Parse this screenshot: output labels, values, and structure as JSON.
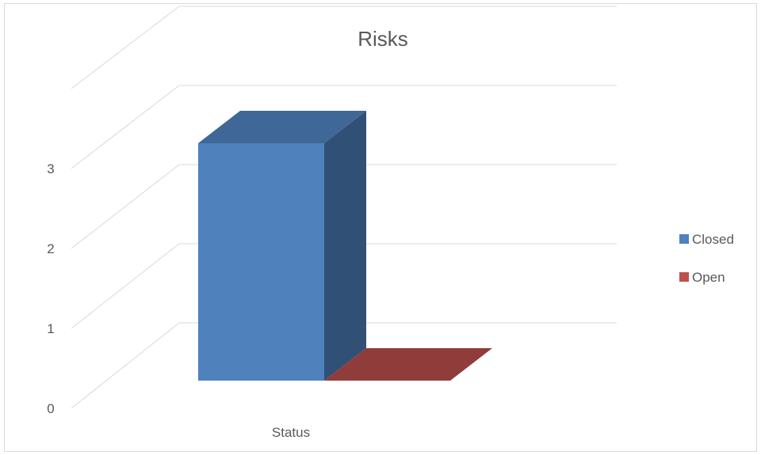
{
  "chart_data": {
    "type": "bar",
    "title": "Risks",
    "categories": [
      "Status"
    ],
    "series": [
      {
        "name": "Closed",
        "values": [
          3
        ],
        "color": "#4f81bd"
      },
      {
        "name": "Open",
        "values": [
          0
        ],
        "color": "#c0504d"
      }
    ],
    "yticks": [
      "0",
      "1",
      "2",
      "3"
    ],
    "ylim": [
      0,
      4
    ],
    "grid": true,
    "legend": "right",
    "style": "3d"
  }
}
